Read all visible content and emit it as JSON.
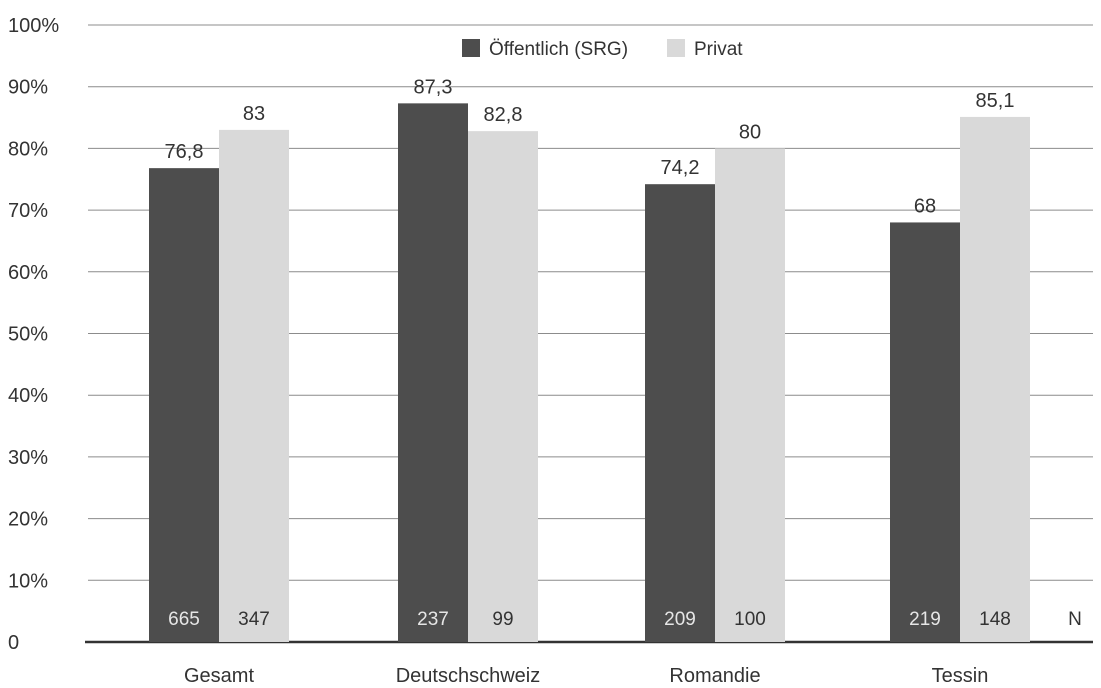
{
  "chart_data": {
    "type": "bar",
    "categories": [
      "Gesamt",
      "Deutschschweiz",
      "Romandie",
      "Tessin"
    ],
    "series": [
      {
        "name": "Öffentlich (SRG)",
        "values": [
          76.8,
          87.3,
          74.2,
          68
        ],
        "value_labels": [
          "76,8",
          "87,3",
          "74,2",
          "68"
        ],
        "n_labels": [
          "665",
          "237",
          "209",
          "219"
        ],
        "color": "#4d4d4d",
        "n_label_color": "#e6e6e6"
      },
      {
        "name": "Privat",
        "values": [
          83,
          82.8,
          80,
          85.1
        ],
        "value_labels": [
          "83",
          "82,8",
          "80",
          "85,1"
        ],
        "n_labels": [
          "347",
          "99",
          "100",
          "148"
        ],
        "color": "#d9d9d9",
        "n_label_color": "#333333"
      }
    ],
    "yticks": [
      "0",
      "10%",
      "20%",
      "30%",
      "40%",
      "50%",
      "60%",
      "70%",
      "80%",
      "90%",
      "100%"
    ],
    "ylim": [
      0,
      100
    ],
    "n_axis_label": "N",
    "legend_position": "top-center",
    "grid": true
  }
}
